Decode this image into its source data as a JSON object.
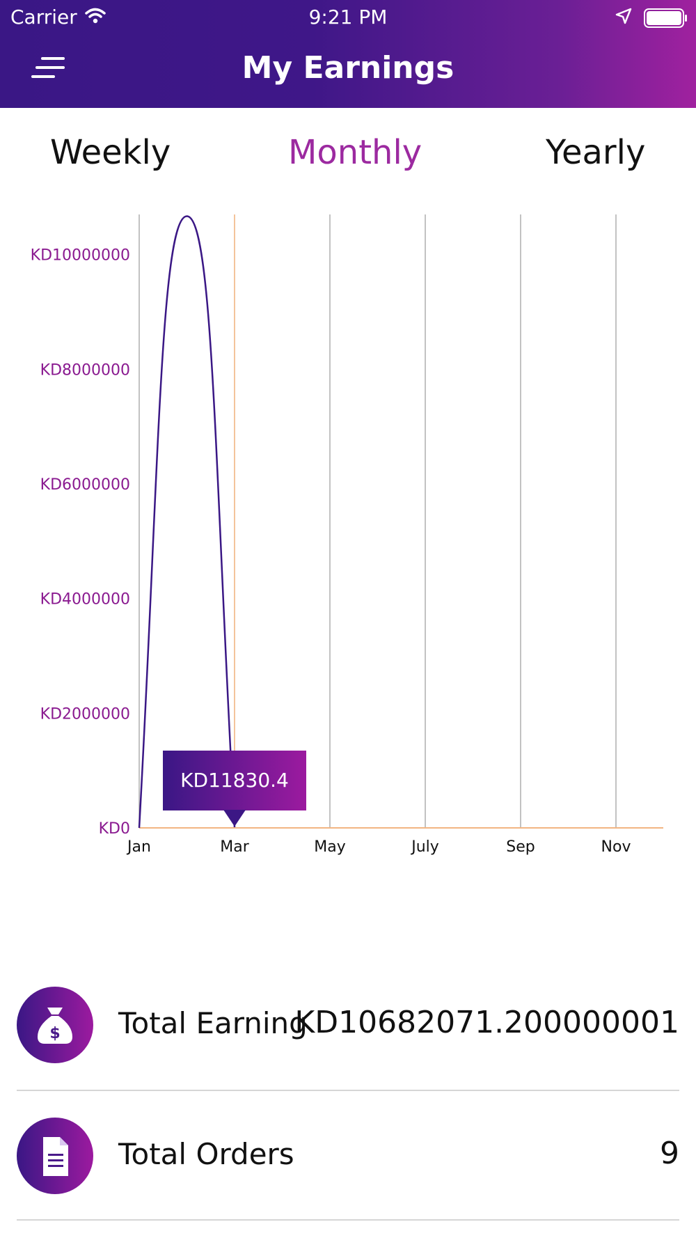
{
  "status_bar": {
    "carrier": "Carrier",
    "time": "9:21 PM"
  },
  "header": {
    "title": "My Earnings",
    "menu_icon": "menu-icon"
  },
  "tabs": [
    {
      "label": "Weekly",
      "active": false
    },
    {
      "label": "Monthly",
      "active": true
    },
    {
      "label": "Yearly",
      "active": false
    }
  ],
  "chart_data": {
    "type": "line",
    "x_tick_labels": [
      "Jan",
      "Mar",
      "May",
      "July",
      "Sep",
      "Nov"
    ],
    "y_tick_labels": [
      "KD0",
      "KD2000000",
      "KD4000000",
      "KD6000000",
      "KD8000000",
      "KD10000000"
    ],
    "ylim": [
      0,
      10700000
    ],
    "series": [
      {
        "points": [
          [
            0,
            0
          ],
          [
            1,
            10670000
          ],
          [
            2,
            11830.4
          ]
        ]
      }
    ],
    "grid": "vertical",
    "selected_index": 2,
    "tooltip": "KD11830.4",
    "colors": {
      "line": "#3a1785",
      "tick_label": "#8a1a90",
      "highlight": "#f2b582"
    }
  },
  "stats": {
    "total_earning": {
      "label": "Total Earning",
      "value": "KD10682071.200000001",
      "icon": "money-bag-icon"
    },
    "total_orders": {
      "label": "Total Orders",
      "value": "9",
      "icon": "document-icon"
    }
  }
}
